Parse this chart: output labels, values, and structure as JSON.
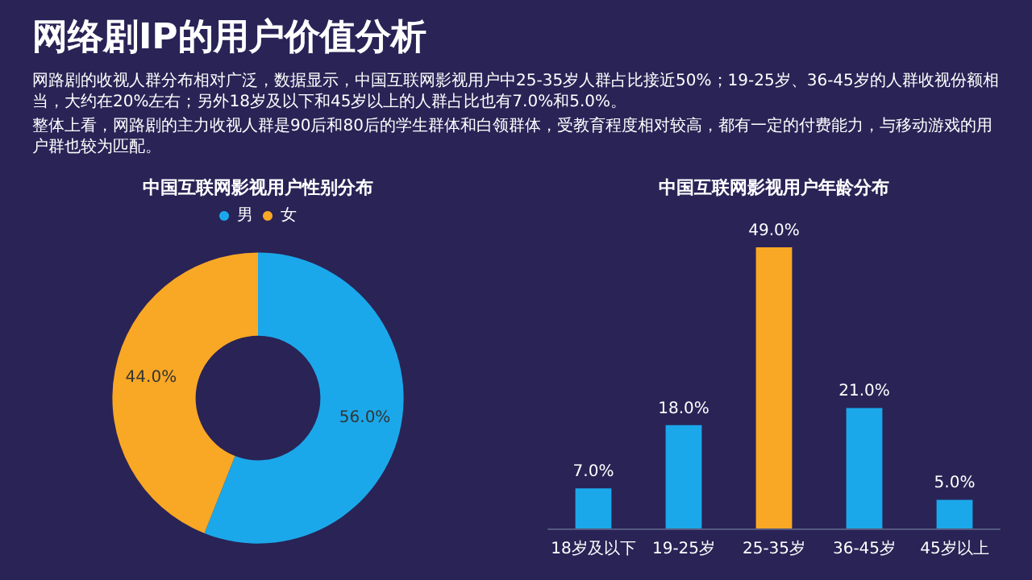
{
  "chart_data": [
    {
      "type": "other",
      "title": "网络剧IP的用户价值分析",
      "annotations": [
        "网路剧的收视人群分布相对广泛，数据显示，中国互联网影视用户中25-35岁人群占比接近50%；19-25岁、36-45岁的人群收视份额相当，大约在20%左右；另外18岁及以下和45岁以上的人群占比也有7.0%和5.0%。",
        "整体上看，网路剧的主力收视人群是90后和80后的学生群体和白领群体，受教育程度相对较高，都有一定的付费能力，与移动游戏的用户群也较为匹配。"
      ]
    },
    {
      "type": "donut",
      "title": "中国互联网影视用户性别分布",
      "categories": [
        "男",
        "女"
      ],
      "values": [
        56,
        44
      ],
      "colors": [
        "#1ba8ea",
        "#f9a825"
      ],
      "value_labels": [
        "56.0%",
        "44.0%"
      ],
      "legend": "top"
    },
    {
      "type": "bar",
      "title": "中国互联网影视用户年龄分布",
      "categories": [
        "18岁及以下",
        "19-25岁",
        "25-35岁",
        "36-45岁",
        "45岁以上"
      ],
      "values": [
        7,
        18,
        49,
        21,
        5
      ],
      "colors": [
        "#1ba8ea",
        "#1ba8ea",
        "#f9a825",
        "#1ba8ea",
        "#1ba8ea"
      ],
      "value_labels": [
        "7.0%",
        "18.0%",
        "49.0%",
        "21.0%",
        "5.0%"
      ]
    }
  ]
}
